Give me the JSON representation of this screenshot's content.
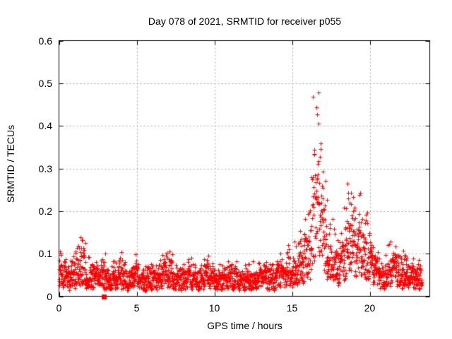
{
  "chart_data": {
    "type": "scatter",
    "title": "Day 078 of 2021, SRMTID for receiver p055",
    "xlabel": "GPS time / hours",
    "ylabel": "SRMTID / TECUs",
    "xlim": [
      0,
      23.86
    ],
    "ylim": [
      0,
      0.6
    ],
    "x_ticks": [
      0,
      5,
      10,
      15,
      20
    ],
    "x_tick_labels": [
      "0",
      "5",
      "10",
      "15",
      "20"
    ],
    "y_ticks": [
      0,
      0.1,
      0.2,
      0.3,
      0.4,
      0.5,
      0.6
    ],
    "y_tick_labels": [
      "0",
      "0.1",
      "0.2",
      "0.3",
      "0.4",
      "0.5",
      "0.6"
    ],
    "grid": true,
    "legend": "none",
    "grid_color": "#a0a0a0",
    "frame_color": "#000000",
    "text_color": "#000000",
    "marker": "plus",
    "marker_size": 7,
    "marker_color": "#ff0000",
    "special_points": [
      {
        "x": 2.9,
        "y": 0.0,
        "marker": "filled-square",
        "color": "#ff0000"
      }
    ],
    "sampling": {
      "seed": 78,
      "t_start": 0,
      "t_end": 23.35,
      "t_step": 0.01
    },
    "envelope_format": [
      "hour",
      "typical_value",
      "max_value"
    ],
    "envelope": [
      [
        0.0,
        0.05,
        0.155
      ],
      [
        0.3,
        0.048,
        0.1
      ],
      [
        0.7,
        0.045,
        0.09
      ],
      [
        1.1,
        0.05,
        0.11
      ],
      [
        1.5,
        0.058,
        0.165
      ],
      [
        1.8,
        0.05,
        0.12
      ],
      [
        2.2,
        0.042,
        0.085
      ],
      [
        2.6,
        0.045,
        0.095
      ],
      [
        3.0,
        0.048,
        0.105
      ],
      [
        3.4,
        0.042,
        0.09
      ],
      [
        3.8,
        0.045,
        0.1
      ],
      [
        4.2,
        0.048,
        0.11
      ],
      [
        4.6,
        0.04,
        0.08
      ],
      [
        5.0,
        0.045,
        0.105
      ],
      [
        5.4,
        0.04,
        0.085
      ],
      [
        5.8,
        0.038,
        0.08
      ],
      [
        6.2,
        0.042,
        0.09
      ],
      [
        6.6,
        0.045,
        0.095
      ],
      [
        7.0,
        0.055,
        0.14
      ],
      [
        7.4,
        0.042,
        0.085
      ],
      [
        7.8,
        0.038,
        0.08
      ],
      [
        8.2,
        0.042,
        0.088
      ],
      [
        8.6,
        0.045,
        0.095
      ],
      [
        9.0,
        0.04,
        0.085
      ],
      [
        9.4,
        0.048,
        0.1
      ],
      [
        9.8,
        0.045,
        0.095
      ],
      [
        10.2,
        0.04,
        0.085
      ],
      [
        10.6,
        0.035,
        0.07
      ],
      [
        11.0,
        0.042,
        0.095
      ],
      [
        11.4,
        0.048,
        0.105
      ],
      [
        11.8,
        0.036,
        0.075
      ],
      [
        12.2,
        0.04,
        0.082
      ],
      [
        12.6,
        0.044,
        0.092
      ],
      [
        13.0,
        0.048,
        0.1
      ],
      [
        13.4,
        0.04,
        0.085
      ],
      [
        13.8,
        0.042,
        0.09
      ],
      [
        14.2,
        0.048,
        0.1
      ],
      [
        14.6,
        0.055,
        0.115
      ],
      [
        15.0,
        0.06,
        0.13
      ],
      [
        15.4,
        0.07,
        0.165
      ],
      [
        15.8,
        0.085,
        0.21
      ],
      [
        16.1,
        0.11,
        0.29
      ],
      [
        16.35,
        0.18,
        0.48
      ],
      [
        16.55,
        0.24,
        0.55
      ],
      [
        16.75,
        0.2,
        0.47
      ],
      [
        16.95,
        0.15,
        0.37
      ],
      [
        17.15,
        0.115,
        0.3
      ],
      [
        17.4,
        0.095,
        0.25
      ],
      [
        17.7,
        0.075,
        0.17
      ],
      [
        18.0,
        0.06,
        0.13
      ],
      [
        18.3,
        0.1,
        0.22
      ],
      [
        18.6,
        0.15,
        0.295
      ],
      [
        18.9,
        0.135,
        0.285
      ],
      [
        19.15,
        0.1,
        0.22
      ],
      [
        19.45,
        0.115,
        0.25
      ],
      [
        19.75,
        0.1,
        0.205
      ],
      [
        20.0,
        0.09,
        0.18
      ],
      [
        20.3,
        0.065,
        0.13
      ],
      [
        20.6,
        0.05,
        0.1
      ],
      [
        20.9,
        0.045,
        0.09
      ],
      [
        21.2,
        0.06,
        0.165
      ],
      [
        21.5,
        0.065,
        0.13
      ],
      [
        21.8,
        0.055,
        0.11
      ],
      [
        22.1,
        0.06,
        0.135
      ],
      [
        22.4,
        0.048,
        0.1
      ],
      [
        22.7,
        0.045,
        0.09
      ],
      [
        23.0,
        0.046,
        0.098
      ],
      [
        23.35,
        0.048,
        0.1
      ]
    ]
  }
}
